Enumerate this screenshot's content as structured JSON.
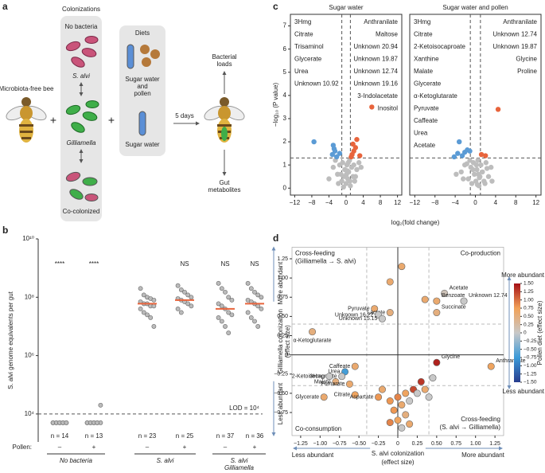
{
  "panel_labels": [
    "a",
    "b",
    "c",
    "d"
  ],
  "diagram": {
    "colonizations_title": "Colonizations",
    "colonizations": [
      "No bacteria",
      "S. alvi",
      "Gilliamella",
      "Co-colonized"
    ],
    "bee_label": "Microbiota-free bee",
    "diets_title": "Diets",
    "diets": [
      [
        "Sugar water",
        "and",
        "pollen"
      ],
      [
        "Sugar water"
      ]
    ],
    "duration": "5 days",
    "outputs": [
      [
        "Bacterial",
        "loads"
      ],
      [
        "Gut",
        "metabolites"
      ]
    ]
  },
  "chart_data": [
    {
      "type": "strip",
      "y_label": "S. alvi genome equivalents per gut",
      "yscale": "log",
      "ylim": [
        1100,
        10000000000
      ],
      "yticks": [
        {
          "value": 10000,
          "label": "10⁴"
        },
        {
          "value": 1000000,
          "label": "10⁶"
        },
        {
          "value": 100000000,
          "label": "10⁸"
        },
        {
          "value": 10000000000,
          "label": "10¹⁰"
        }
      ],
      "lod": {
        "value": 10000,
        "label": "LOD = 10⁴"
      },
      "pollen_label": "Pollen:",
      "groups": [
        {
          "name": [
            "No bacteria"
          ],
          "columns": [
            {
              "pollen": "–",
              "n": "n = 14",
              "significance": "****",
              "values": [
                5000,
                5000,
                5000,
                5000,
                5000,
                5000,
                5000,
                5000,
                5000,
                5000
              ]
            },
            {
              "pollen": "+",
              "n": "n = 13",
              "significance": "****",
              "values": [
                5000,
                5000,
                5000,
                5000,
                5000,
                5000,
                5000,
                5000,
                5000,
                20000
              ]
            }
          ]
        },
        {
          "name": [
            "S. alvi"
          ],
          "columns": [
            {
              "pollen": "–",
              "n": "n = 23",
              "significance": null,
              "median": 60000000,
              "values": [
                200000000,
                120000000,
                100000000,
                90000000,
                80000000,
                70000000,
                60000000,
                60000000,
                50000000,
                50000000,
                40000000,
                30000000,
                25000000,
                20000000,
                10000000
              ]
            },
            {
              "pollen": "+",
              "n": "n = 25",
              "significance": "NS",
              "median": 80000000,
              "values": [
                250000000,
                180000000,
                150000000,
                120000000,
                100000000,
                90000000,
                80000000,
                70000000,
                60000000,
                50000000,
                40000000,
                30000000
              ]
            }
          ]
        },
        {
          "name": [
            "S. alvi",
            "Gilliamella"
          ],
          "columns": [
            {
              "pollen": "–",
              "n": "n = 37",
              "significance": "NS",
              "median": 40000000,
              "values": [
                300000000,
                200000000,
                150000000,
                100000000,
                80000000,
                60000000,
                50000000,
                40000000,
                30000000,
                25000000,
                20000000,
                15000000,
                10000000,
                6000000
              ]
            },
            {
              "pollen": "+",
              "n": "n = 36",
              "significance": "NS",
              "median": 60000000,
              "values": [
                300000000,
                200000000,
                150000000,
                120000000,
                100000000,
                80000000,
                70000000,
                60000000,
                50000000,
                40000000,
                30000000,
                20000000,
                15000000,
                10000000
              ]
            }
          ]
        }
      ]
    },
    {
      "type": "volcano",
      "title": "Sugar water",
      "x_label": "log₂(fold change)",
      "y_label": "−log₁₀ (P value)",
      "xlim": [
        -13,
        13
      ],
      "xticks": [
        {
          "value": -12,
          "label": "−12"
        },
        {
          "value": -8,
          "label": "−8"
        },
        {
          "value": -4,
          "label": "−4"
        },
        0,
        4,
        8,
        12
      ],
      "ylim": [
        -0.3,
        7.5
      ],
      "yticks": [
        0,
        1,
        2,
        3,
        4,
        5,
        6,
        7
      ],
      "threshold_y": 1.3,
      "threshold_x": [
        -1,
        1
      ],
      "depleted_labels": [
        "3Hmg",
        "Citrate",
        "Trisaminol",
        "Glycerate",
        "Urea",
        "Unknown 10.92"
      ],
      "enriched_labels": [
        "Anthranilate",
        "Maltose",
        "Unknown 20.94",
        "Unknown 19.87",
        "Unknown 12.74",
        "Unknown 19.16",
        "3-Indolacetate",
        "Inositol"
      ],
      "groups": [
        {
          "color": "#bdbdbd",
          "x": [
            -3,
            -2,
            -1.5,
            -1,
            -0.8,
            -0.5,
            -0.3,
            0,
            0.2,
            0.4,
            0.6,
            0.8,
            1,
            1.3,
            1.6,
            2,
            2.5,
            3,
            -2.5,
            -1.2,
            0.5,
            1.8,
            -0.6,
            0.1,
            0.9,
            -4,
            3.5,
            -1.8,
            2.2,
            0.3
          ],
          "y": [
            0.9,
            0.6,
            1.0,
            0.3,
            1.1,
            0.5,
            0.8,
            0.2,
            1.0,
            0.4,
            0.7,
            1.2,
            0.1,
            0.9,
            0.5,
            0.3,
            0.8,
            1.1,
            1.2,
            0.6,
            1.1,
            1.0,
            0.05,
            0.6,
            0.3,
            0.4,
            0.9,
            0.2,
            0.5,
            0.75
          ]
        },
        {
          "color": "#5b9bd5",
          "x": [
            -7.5,
            -3,
            -2.6,
            -3.2,
            -2.2,
            -1.5,
            -2.8
          ],
          "y": [
            2.0,
            1.85,
            1.6,
            1.45,
            1.35,
            1.5,
            1.7
          ]
        },
        {
          "color": "#e8643c",
          "x": [
            6,
            2.5,
            1.8,
            1.4,
            3.2,
            1.2,
            2.2,
            1.6
          ],
          "y": [
            3.5,
            2.1,
            1.6,
            1.45,
            1.4,
            1.35,
            1.75,
            1.9
          ]
        }
      ]
    },
    {
      "type": "volcano",
      "title": "Sugar water and pollen",
      "xlim": [
        -13,
        13
      ],
      "xticks": [
        {
          "value": -12,
          "label": "−12"
        },
        {
          "value": -8,
          "label": "−8"
        },
        {
          "value": -4,
          "label": "−4"
        },
        0,
        4,
        8,
        12
      ],
      "ylim": [
        -0.3,
        7.5
      ],
      "threshold_y": 1.3,
      "threshold_x": [
        -1,
        1
      ],
      "depleted_labels": [
        "3Hmg",
        "Citrate",
        "2-Ketoisocaproate",
        "Xanthine",
        "Malate",
        "Glycerate",
        "α-Ketoglutarate",
        "Pyruvate",
        "Caffeate",
        "Urea",
        "Acetate"
      ],
      "enriched_labels": [
        "Anthranilate",
        "Unknown 12.74",
        "Unknown 19.87",
        "Glycine",
        "Proline"
      ],
      "groups": [
        {
          "color": "#bdbdbd",
          "x": [
            -2.8,
            -2.1,
            -1.4,
            -0.9,
            -0.7,
            -0.4,
            -0.2,
            0.1,
            0.3,
            0.5,
            0.7,
            0.9,
            1.1,
            1.4,
            1.7,
            2.1,
            2.6,
            3.1,
            -2.4,
            -1.1,
            0.6,
            1.9,
            -0.5,
            0.2,
            0.8,
            -3.8,
            3.3,
            -1.7,
            2.3,
            0.4
          ],
          "y": [
            0.7,
            1.0,
            0.4,
            0.9,
            0.2,
            1.1,
            0.6,
            0.3,
            0.8,
            1.2,
            0.1,
            0.5,
            1.0,
            0.7,
            0.3,
            1.1,
            0.5,
            0.9,
            0.4,
            1.2,
            0.6,
            0.2,
            0.8,
            1.0,
            0.45,
            0.6,
            0.3,
            1.05,
            0.85,
            0.15
          ]
        },
        {
          "color": "#5b9bd5",
          "x": [
            -3.2,
            -2.1,
            -1.6,
            -3.5,
            -2.6,
            -1.1,
            -4.2
          ],
          "y": [
            2.0,
            1.55,
            1.65,
            1.5,
            1.4,
            1.6,
            1.35
          ]
        },
        {
          "color": "#e8643c",
          "x": [
            4.5,
            2,
            1.2
          ],
          "y": [
            3.4,
            1.4,
            1.45
          ]
        }
      ]
    },
    {
      "type": "scatter",
      "x_label": [
        "S. alvi colonization",
        "(effect size)"
      ],
      "y_label": [
        "Gilliamella colonization",
        "(effect size)"
      ],
      "x_arrows": [
        "Less abundant",
        "More abundant"
      ],
      "y_arrows": [
        "More abundant",
        "Less abundant"
      ],
      "quadrants": {
        "top_left": [
          "Cross-feeding",
          "(Gilliamella → S. alvi)"
        ],
        "top_right": [
          "Co-production"
        ],
        "bottom_left": [
          "Co-consumption"
        ],
        "bottom_right": [
          "Cross-feeding",
          "(S. alvi → Gilliamella)"
        ]
      },
      "xlim": [
        -1.3,
        1.3
      ],
      "xticks": [
        {
          "value": -1.25,
          "label": "−1.25"
        },
        {
          "value": -1,
          "label": "−1.00"
        },
        {
          "value": -0.75,
          "label": "−0.75"
        },
        {
          "value": -0.5,
          "label": "−0.50"
        },
        {
          "value": -0.25,
          "label": "−0.25"
        },
        0,
        0.25,
        {
          "value": 0.5,
          "label": "0.50"
        },
        0.75,
        {
          "value": 1,
          "label": "1.00"
        },
        1.25
      ],
      "ylim": [
        -1.05,
        1.4
      ],
      "yticks": [
        {
          "value": -0.75,
          "label": "−0.75"
        },
        {
          "value": -0.5,
          "label": "−0.50"
        },
        {
          "value": -0.25,
          "label": "−0.25"
        },
        0,
        0.25,
        {
          "value": 0.5,
          "label": "0.50"
        },
        0.75,
        {
          "value": 1,
          "label": "1.00"
        },
        1.25
      ],
      "thresholds": [
        -0.4,
        0.4
      ],
      "points": {
        "x": [
          -1.1,
          -0.3,
          -0.1,
          -0.25,
          -0.2,
          0.6,
          0.85,
          0.5,
          0.5,
          0.05,
          -0.1,
          0.35,
          0.5,
          1.2,
          -0.55,
          -0.68,
          -0.72,
          -0.8,
          -0.62,
          -0.95,
          -0.55,
          -0.25,
          -0.88,
          0.3,
          0.2,
          0.1,
          0,
          -0.1,
          0.05,
          -0.05,
          0.1,
          0,
          0.15,
          -0.1,
          0.25,
          0.4,
          0.35,
          0.15,
          -0.2,
          0.05,
          0.45
        ],
        "y": [
          0.3,
          0.6,
          0.55,
          0.52,
          0.47,
          0.8,
          0.7,
          0.7,
          0.55,
          1.15,
          0.95,
          0.72,
          -0.1,
          -0.15,
          -0.15,
          -0.22,
          -0.28,
          -0.35,
          -0.38,
          -0.55,
          -0.52,
          -0.55,
          -0.28,
          -0.35,
          -0.45,
          -0.5,
          -0.55,
          -0.6,
          -0.65,
          -0.72,
          -0.78,
          -0.85,
          -0.9,
          -0.88,
          -0.5,
          -0.55,
          -0.45,
          -0.6,
          -0.45,
          -0.95,
          -0.3
        ],
        "c": [
          0.5,
          0.6,
          0.5,
          0,
          0,
          0.1,
          0,
          0.6,
          0.5,
          0.6,
          0.6,
          0.6,
          1.4,
          0.7,
          0.6,
          -0.7,
          0,
          0.5,
          0.6,
          0.6,
          0.7,
          0.8,
          0,
          1.3,
          1.2,
          0.7,
          0.9,
          0.8,
          0.6,
          0.8,
          0.5,
          0.7,
          0.6,
          0.9,
          0,
          0,
          0.6,
          0,
          0.6,
          0,
          0
        ],
        "labels": [
          "α-Ketoglutarate",
          "Pyruvate",
          "Lactate",
          "Unknown 16.22",
          "Unknown 15.15",
          "Acetate",
          "Unknown 12.74",
          "Benzoate",
          "Succinate",
          null,
          null,
          null,
          "Glycine",
          "Anthranilate",
          "Caffeate",
          "Urea",
          "2-Ketoisocaproate",
          "Malate",
          "Fumarate",
          "Glycerate",
          "Citrate",
          "Aspartate",
          "3Hmg",
          null,
          null,
          null,
          null,
          null,
          null,
          null,
          null,
          null,
          null,
          null,
          null,
          null,
          null,
          null,
          null,
          null,
          null
        ]
      },
      "colorbar": {
        "title": "Pollen diet (effect size)",
        "ends": [
          "More abundant",
          "Less abundant"
        ],
        "lim": [
          -1.5,
          1.5
        ],
        "colors": [
          "#283c8e",
          "#3b9ad8",
          "#c8c8c8",
          "#f2a157",
          "#a50f15"
        ],
        "ticks": [
          {
            "value": -1.5,
            "label": "−1.50"
          },
          {
            "value": -1.25,
            "label": "−1.25"
          },
          {
            "value": -1,
            "label": "−1.00"
          },
          {
            "value": -0.75,
            "label": "−0.75"
          },
          {
            "value": -0.5,
            "label": "−0.50"
          },
          {
            "value": -0.25,
            "label": "−0.25"
          },
          0,
          0.25,
          {
            "value": 0.5,
            "label": "0.50"
          },
          0.75,
          {
            "value": 1,
            "label": "1.00"
          },
          1.25,
          {
            "value": 1.5,
            "label": "1.50"
          }
        ]
      }
    }
  ]
}
